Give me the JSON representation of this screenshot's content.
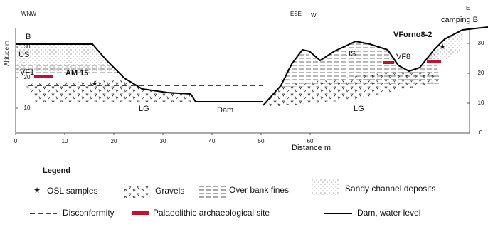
{
  "section": {
    "left_direction": "WNW",
    "mid_direction_1": "ESE",
    "mid_direction_2": "W",
    "right_direction": "E",
    "left_bank": "B",
    "right_bank": "camping B",
    "unit_left": "US",
    "unit_right": "US",
    "site_left": "VF1",
    "sample_left": "AM 15",
    "site_right": "VF8",
    "sample_right": "VForno8-2",
    "gravel_left": "LG",
    "gravel_right": "LG",
    "dam": "Dam"
  },
  "axes": {
    "x": {
      "label": "Distance m",
      "ticks": [
        0,
        10,
        20,
        30,
        40,
        50,
        60
      ]
    },
    "y_left": {
      "label": "Altitude m",
      "ticks": [
        10,
        20,
        30
      ]
    },
    "y_right": {
      "ticks": [
        0,
        10,
        20,
        30
      ]
    }
  },
  "legend": {
    "title": "Legend",
    "osl": "OSL samples",
    "gravels": "Gravels",
    "fines": "Over bank fines",
    "sand": "Sandy channel deposits",
    "disconformity": "Disconformity",
    "site": "Palaeolithic archaeological site",
    "dam": "Dam, water level"
  }
}
